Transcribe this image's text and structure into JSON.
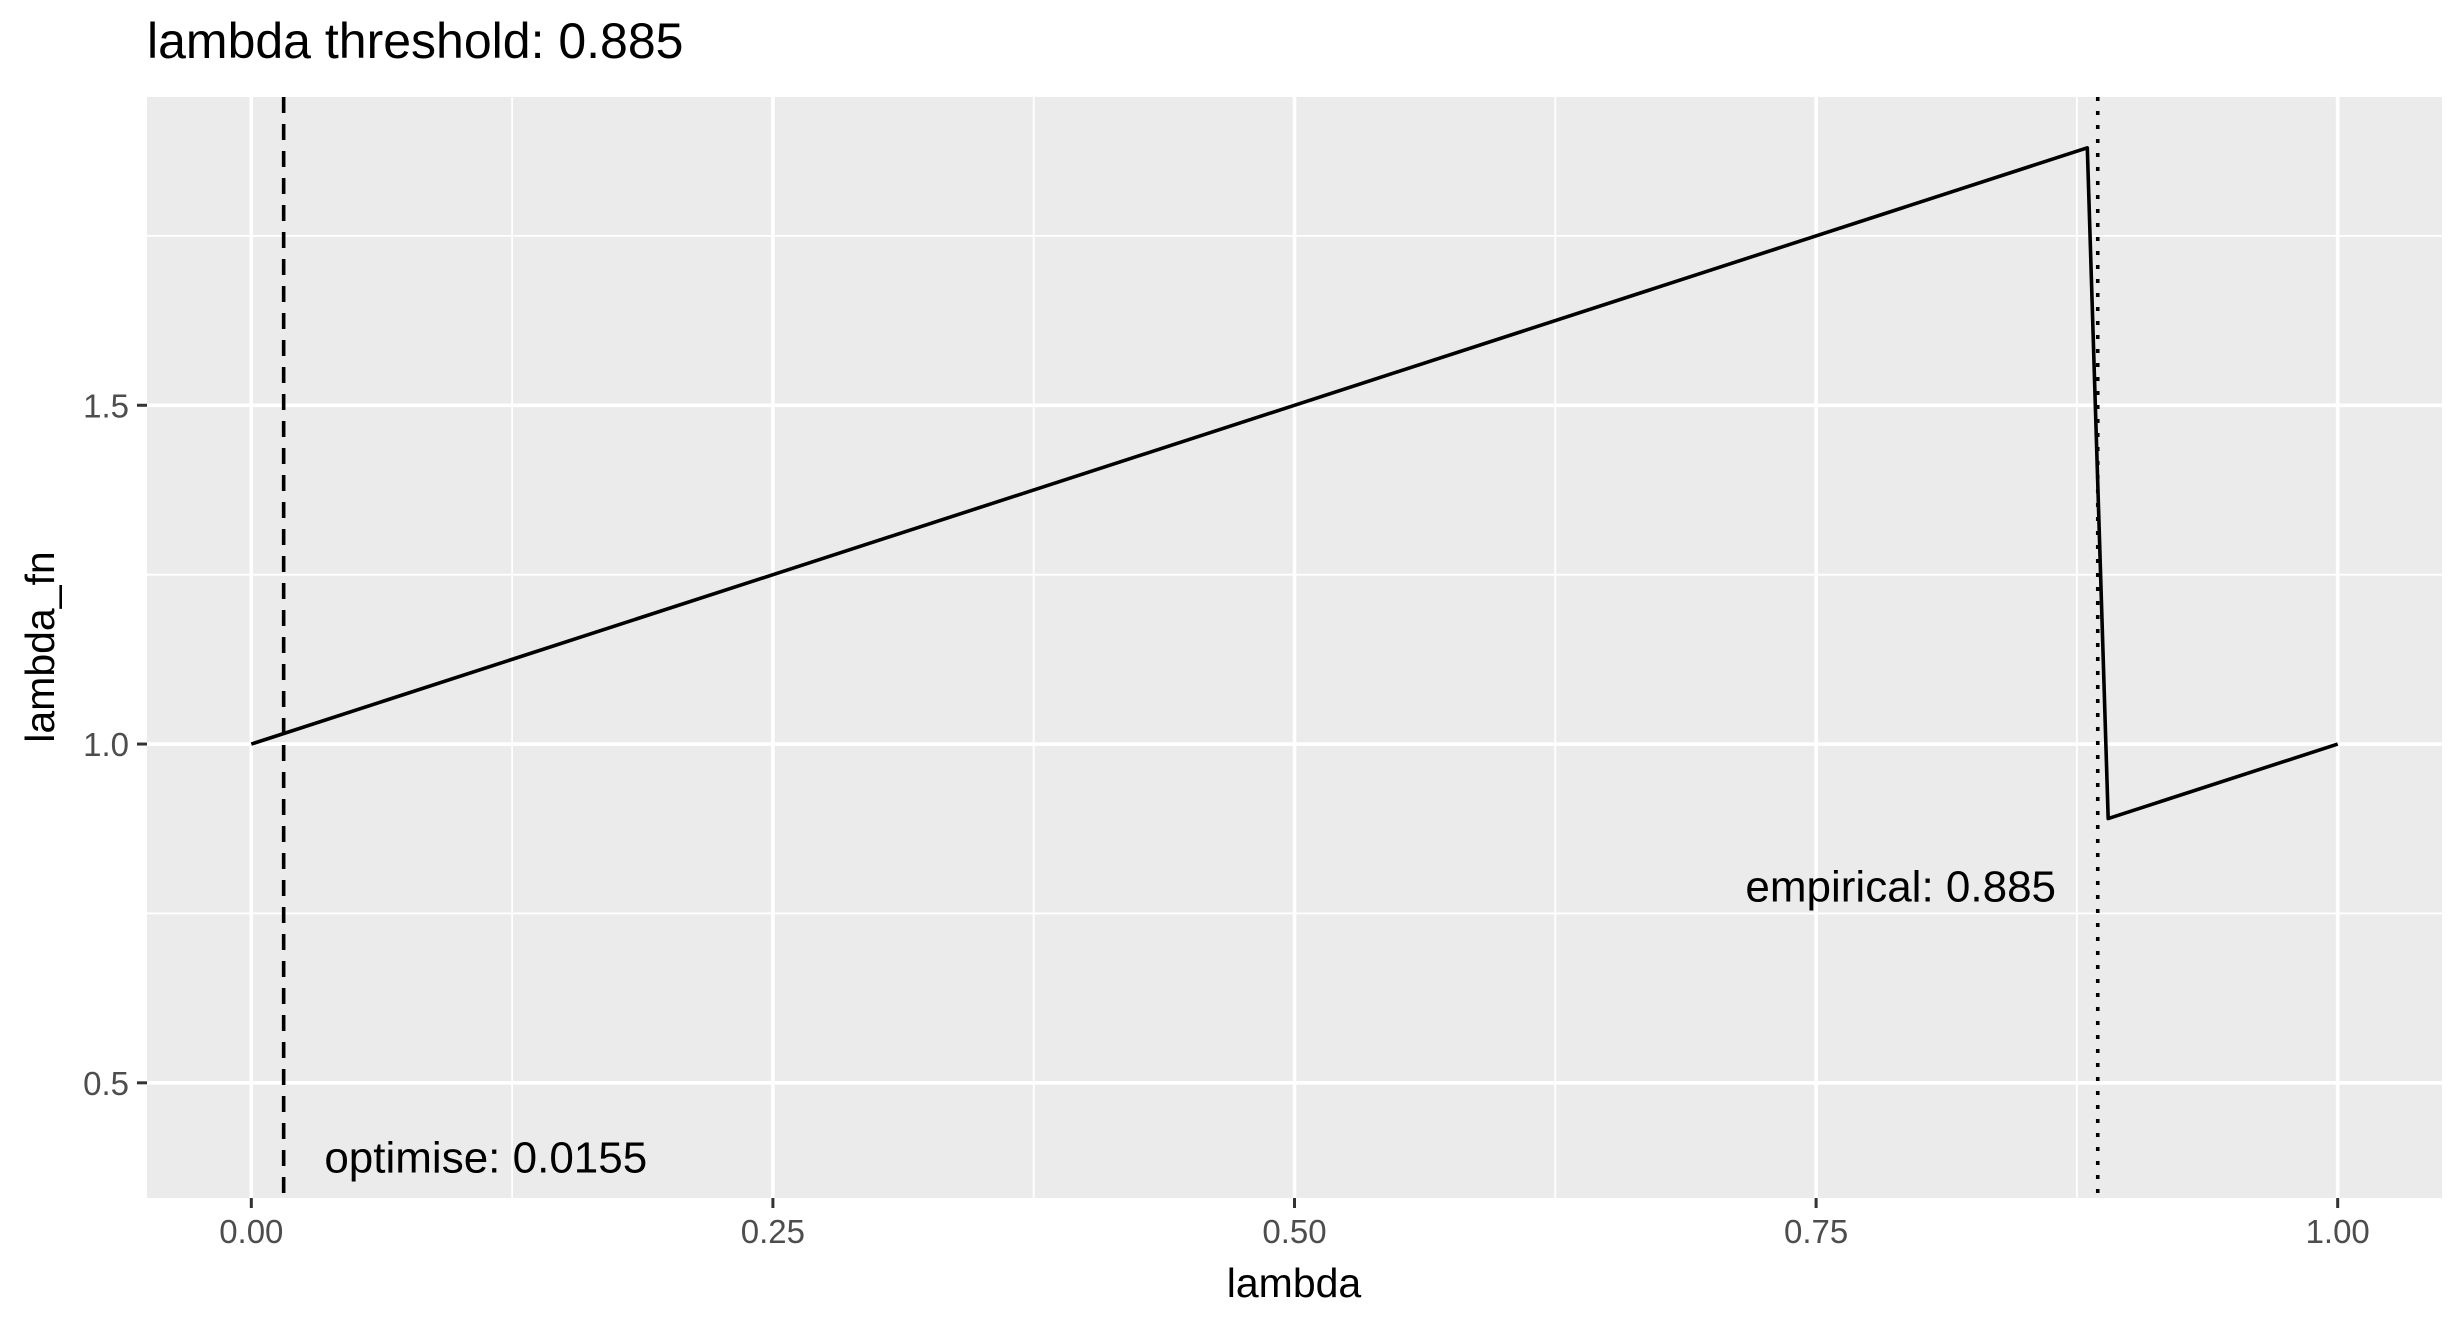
{
  "chart_data": {
    "type": "line",
    "title": "lambda threshold: 0.885",
    "xlabel": "lambda",
    "ylabel": "lambda_fn",
    "xlim": [
      -0.05,
      1.05
    ],
    "ylim": [
      0.33,
      1.955
    ],
    "x_ticks": [
      0.0,
      0.25,
      0.5,
      0.75,
      1.0
    ],
    "x_tick_labels": [
      "0.00",
      "0.25",
      "0.50",
      "0.75",
      "1.00"
    ],
    "y_ticks": [
      0.5,
      1.0,
      1.5
    ],
    "y_tick_labels": [
      "0.5",
      "1.0",
      "1.5"
    ],
    "grid": true,
    "series": [
      {
        "x": [
          0.0,
          0.88,
          0.89,
          1.0
        ],
        "y": [
          1.0,
          1.88,
          0.89,
          1.0
        ],
        "color": "#000000"
      }
    ],
    "vlines": [
      {
        "x": 0.0155,
        "style": "dashed"
      },
      {
        "x": 0.885,
        "style": "dotted"
      }
    ],
    "annotations": [
      {
        "text": "optimise: 0.0155",
        "x": 0.035,
        "y": 0.39,
        "anchor": "start"
      },
      {
        "text": "empirical: 0.885",
        "x": 0.865,
        "y": 0.79,
        "anchor": "end"
      }
    ],
    "colors": {
      "panel": "#ebebeb",
      "grid": "#ffffff",
      "line": "#000000",
      "tick": "#4d4d4d"
    }
  }
}
